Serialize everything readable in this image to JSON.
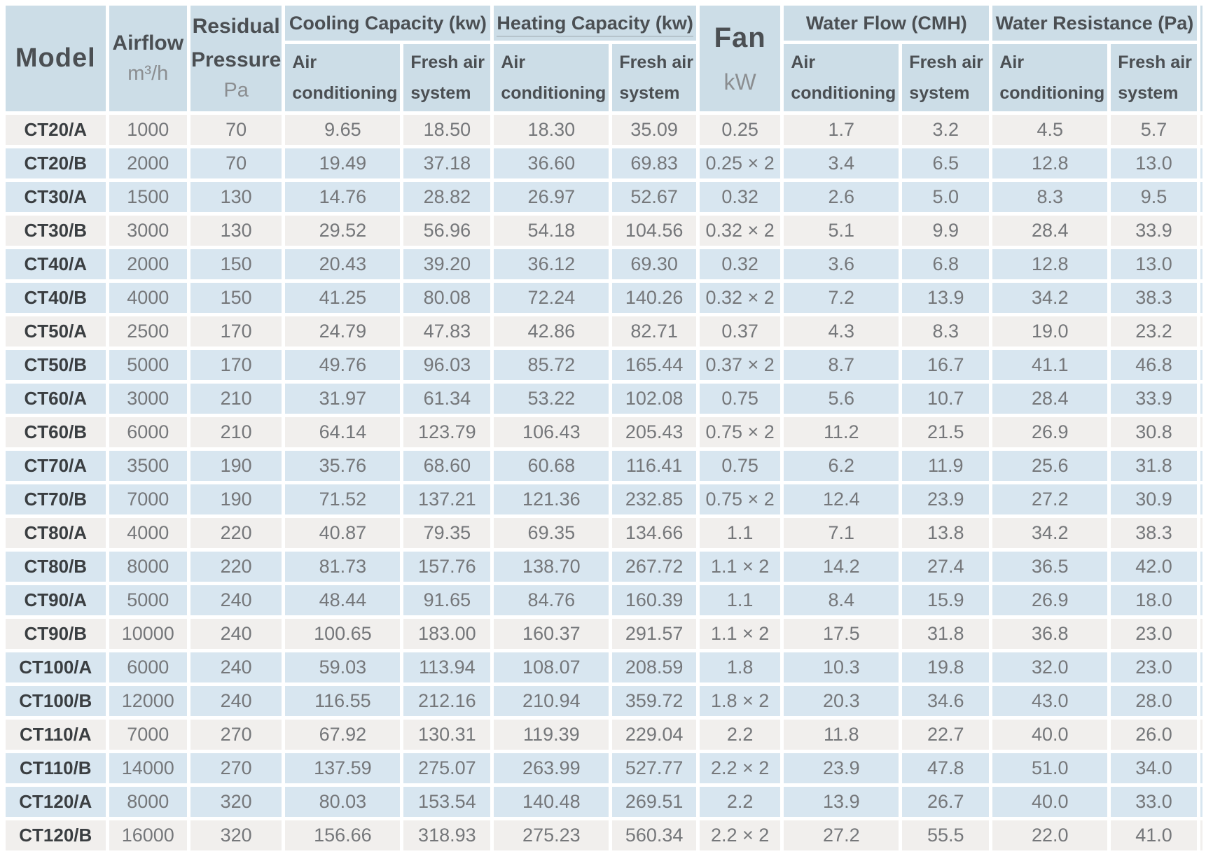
{
  "palette": {
    "header_bg": "#ccdde7",
    "row_gray": "#f1efed",
    "row_blue": "#d8e6f0",
    "header_text": "#4b4f53",
    "unit_text": "#8b8e91",
    "model_text": "#3a3e41",
    "data_text": "#75777a",
    "underline": "#b5c3cb"
  },
  "table": {
    "header": {
      "model": "Model",
      "airflow": {
        "label": "Airflow",
        "unit": "m³/h"
      },
      "residual_pressure": {
        "line1": "Residual",
        "line2": "Pressure",
        "unit": "Pa"
      },
      "cooling": {
        "label": "Cooling Capacity (kw)"
      },
      "heating": {
        "label": "Heating Capacity (kw)"
      },
      "fan": {
        "label": "Fan",
        "unit": "kW"
      },
      "water_flow": {
        "label": "Water Flow (CMH)"
      },
      "water_resistance": {
        "label": "Water Resistance (Pa)"
      },
      "sub": {
        "air_line1": "Air",
        "air_line2": "conditioning",
        "fresh_line1": "Fresh air",
        "fresh_line2": "system"
      }
    },
    "rows": [
      {
        "model": "CT20/A",
        "values": [
          "1000",
          "70",
          "9.65",
          "18.50",
          "18.30",
          "35.09",
          "0.25",
          "1.7",
          "3.2",
          "4.5",
          "5.7"
        ]
      },
      {
        "model": "CT20/B",
        "values": [
          "2000",
          "70",
          "19.49",
          "37.18",
          "36.60",
          "69.83",
          "0.25 × 2",
          "3.4",
          "6.5",
          "12.8",
          "13.0"
        ]
      },
      {
        "model": "CT30/A",
        "values": [
          "1500",
          "130",
          "14.76",
          "28.82",
          "26.97",
          "52.67",
          "0.32",
          "2.6",
          "5.0",
          "8.3",
          "9.5"
        ]
      },
      {
        "model": "CT30/B",
        "values": [
          "3000",
          "130",
          "29.52",
          "56.96",
          "54.18",
          "104.56",
          "0.32 × 2",
          "5.1",
          "9.9",
          "28.4",
          "33.9"
        ]
      },
      {
        "model": "CT40/A",
        "values": [
          "2000",
          "150",
          "20.43",
          "39.20",
          "36.12",
          "69.30",
          "0.32",
          "3.6",
          "6.8",
          "12.8",
          "13.0"
        ]
      },
      {
        "model": "CT40/B",
        "values": [
          "4000",
          "150",
          "41.25",
          "80.08",
          "72.24",
          "140.26",
          "0.32 × 2",
          "7.2",
          "13.9",
          "34.2",
          "38.3"
        ]
      },
      {
        "model": "CT50/A",
        "values": [
          "2500",
          "170",
          "24.79",
          "47.83",
          "42.86",
          "82.71",
          "0.37",
          "4.3",
          "8.3",
          "19.0",
          "23.2"
        ]
      },
      {
        "model": "CT50/B",
        "values": [
          "5000",
          "170",
          "49.76",
          "96.03",
          "85.72",
          "165.44",
          "0.37 × 2",
          "8.7",
          "16.7",
          "41.1",
          "46.8"
        ]
      },
      {
        "model": "CT60/A",
        "values": [
          "3000",
          "210",
          "31.97",
          "61.34",
          "53.22",
          "102.08",
          "0.75",
          "5.6",
          "10.7",
          "28.4",
          "33.9"
        ]
      },
      {
        "model": "CT60/B",
        "values": [
          "6000",
          "210",
          "64.14",
          "123.79",
          "106.43",
          "205.43",
          "0.75 × 2",
          "11.2",
          "21.5",
          "26.9",
          "30.8"
        ]
      },
      {
        "model": "CT70/A",
        "values": [
          "3500",
          "190",
          "35.76",
          "68.60",
          "60.68",
          "116.41",
          "0.75",
          "6.2",
          "11.9",
          "25.6",
          "31.8"
        ]
      },
      {
        "model": "CT70/B",
        "values": [
          "7000",
          "190",
          "71.52",
          "137.21",
          "121.36",
          "232.85",
          "0.75 × 2",
          "12.4",
          "23.9",
          "27.2",
          "30.9"
        ]
      },
      {
        "model": "CT80/A",
        "values": [
          "4000",
          "220",
          "40.87",
          "79.35",
          "69.35",
          "134.66",
          "1.1",
          "7.1",
          "13.8",
          "34.2",
          "38.3"
        ]
      },
      {
        "model": "CT80/B",
        "values": [
          "8000",
          "220",
          "81.73",
          "157.76",
          "138.70",
          "267.72",
          "1.1 × 2",
          "14.2",
          "27.4",
          "36.5",
          "42.0"
        ]
      },
      {
        "model": "CT90/A",
        "values": [
          "5000",
          "240",
          "48.44",
          "91.65",
          "84.76",
          "160.39",
          "1.1",
          "8.4",
          "15.9",
          "26.9",
          "18.0"
        ]
      },
      {
        "model": "CT90/B",
        "values": [
          "10000",
          "240",
          "100.65",
          "183.00",
          "160.37",
          "291.57",
          "1.1 × 2",
          "17.5",
          "31.8",
          "36.8",
          "23.0"
        ]
      },
      {
        "model": "CT100/A",
        "values": [
          "6000",
          "240",
          "59.03",
          "113.94",
          "108.07",
          "208.59",
          "1.8",
          "10.3",
          "19.8",
          "32.0",
          "23.0"
        ]
      },
      {
        "model": "CT100/B",
        "values": [
          "12000",
          "240",
          "116.55",
          "212.16",
          "210.94",
          "359.72",
          "1.8 × 2",
          "20.3",
          "34.6",
          "43.0",
          "28.0"
        ]
      },
      {
        "model": "CT110/A",
        "values": [
          "7000",
          "270",
          "67.92",
          "130.31",
          "119.39",
          "229.04",
          "2.2",
          "11.8",
          "22.7",
          "40.0",
          "26.0"
        ]
      },
      {
        "model": "CT110/B",
        "values": [
          "14000",
          "270",
          "137.59",
          "275.07",
          "263.99",
          "527.77",
          "2.2 × 2",
          "23.9",
          "47.8",
          "51.0",
          "34.0"
        ]
      },
      {
        "model": "CT120/A",
        "values": [
          "8000",
          "320",
          "80.03",
          "153.54",
          "140.48",
          "269.51",
          "2.2",
          "13.9",
          "26.7",
          "40.0",
          "33.0"
        ]
      },
      {
        "model": "CT120/B",
        "values": [
          "16000",
          "320",
          "156.66",
          "318.93",
          "275.23",
          "560.34",
          "2.2 × 2",
          "27.2",
          "55.5",
          "22.0",
          "41.0"
        ]
      }
    ]
  }
}
